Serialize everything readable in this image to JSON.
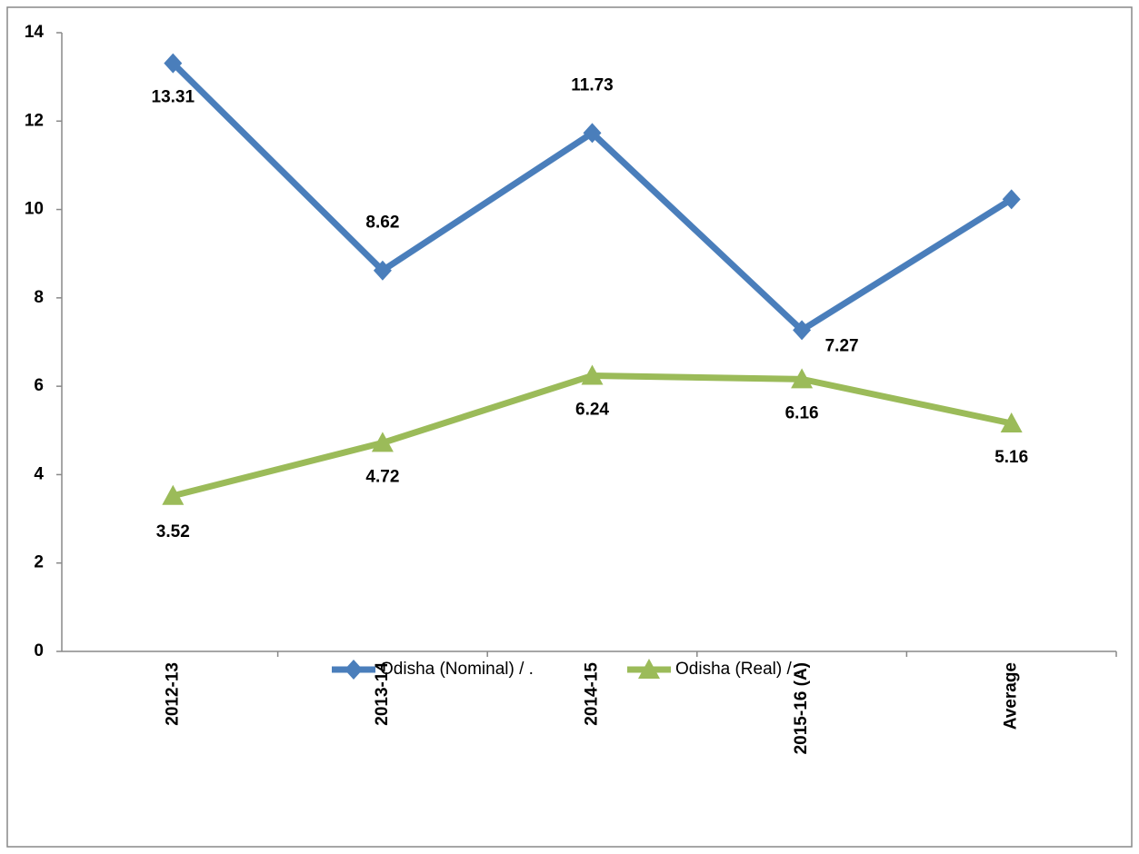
{
  "chart_data": {
    "type": "line",
    "categories": [
      "2012-13",
      "2013-14",
      "2014-15",
      "2015-16 (A)",
      "Average"
    ],
    "series": [
      {
        "name": "Odisha (Nominal) / .",
        "color": "#4a7ebb",
        "marker": "diamond",
        "values": [
          13.31,
          8.62,
          11.73,
          7.27,
          10.23
        ],
        "value_labels": [
          "13.31",
          "8.62",
          "11.73",
          "7.27",
          null
        ]
      },
      {
        "name": "Odisha (Real) / .",
        "color": "#9bbb59",
        "marker": "triangle",
        "values": [
          3.52,
          4.72,
          6.24,
          6.16,
          5.16
        ],
        "value_labels": [
          "3.52",
          "4.72",
          "6.24",
          "6.16",
          "5.16"
        ]
      }
    ],
    "ylim": [
      0,
      14
    ],
    "yticks": [
      0,
      2,
      4,
      6,
      8,
      10,
      12,
      14
    ],
    "grid": false,
    "legend": "bottom"
  }
}
